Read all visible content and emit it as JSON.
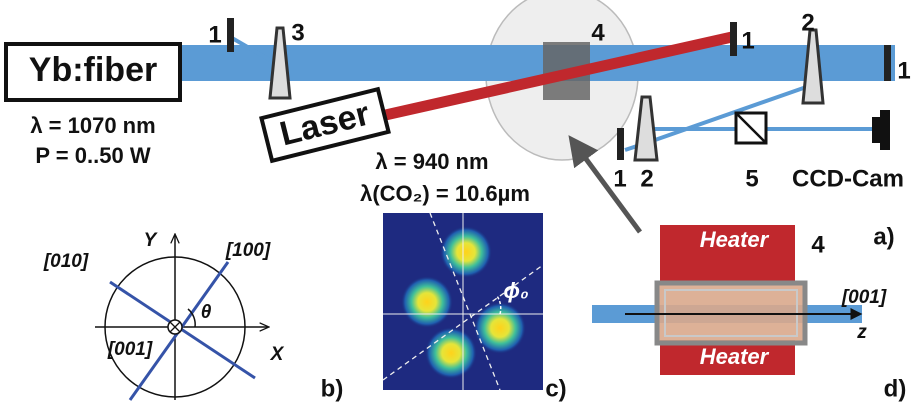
{
  "panel_a": {
    "source_label": "Yb:fiber",
    "source_wavelength": "λ = 1070 nm",
    "source_power": "P = 0..50 W",
    "laser_label": "Laser",
    "laser_wavelength": "λ = 940 nm",
    "co2_wavelength": "λ(CO₂) = 10.6µm",
    "component_labels": [
      "1",
      "3",
      "4",
      "1",
      "2",
      "1",
      "1",
      "2",
      "5"
    ],
    "camera_label": "CCD-Cam",
    "panel_label": "a)"
  },
  "panel_b": {
    "axis_y": "Y",
    "axis_x": "X",
    "direction_010": "[010]",
    "direction_100": "[100]",
    "direction_001": "[001]",
    "angle": "θ",
    "panel_label": "b)"
  },
  "panel_c": {
    "angle": "ϕ₀",
    "panel_label": "c)"
  },
  "panel_d": {
    "heater_top": "Heater",
    "heater_bottom": "Heater",
    "crystal_label": "4",
    "direction": "[001]",
    "axis": "z",
    "panel_label": "d)"
  }
}
